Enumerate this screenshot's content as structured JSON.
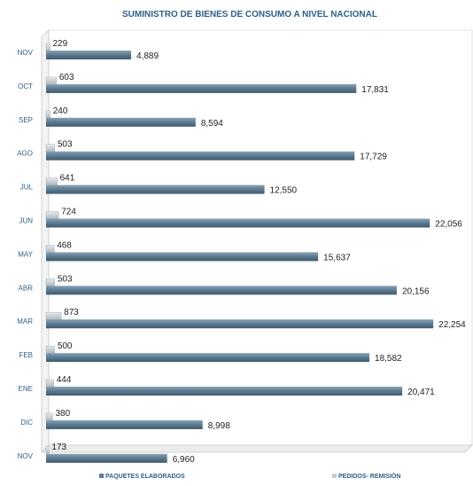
{
  "chart_data": {
    "type": "bar",
    "orientation": "horizontal",
    "title": "SUMINISTRO DE BIENES DE CONSUMO A NIVEL NACIONAL",
    "categories": [
      "NOV",
      "OCT",
      "SEP",
      "AGO",
      "JUL",
      "JUN",
      "MAY",
      "ABR",
      "MAR",
      "FEB",
      "ENE",
      "DIC",
      "NOV"
    ],
    "series": [
      {
        "name": "PEDIDOS- REMISIÓN",
        "values": [
          229,
          603,
          240,
          503,
          641,
          724,
          468,
          503,
          873,
          500,
          444,
          380,
          173
        ]
      },
      {
        "name": "PAQUETES ELABORADOS",
        "values": [
          4889,
          17831,
          8594,
          17729,
          12550,
          22056,
          15637,
          20156,
          22254,
          18582,
          20471,
          8998,
          6960
        ]
      }
    ],
    "value_labels": {
      "PEDIDOS- REMISIÓN": [
        "229",
        "603",
        "240",
        "503",
        "641",
        "724",
        "468",
        "503",
        "873",
        "500",
        "444",
        "380",
        "173"
      ],
      "PAQUETES ELABORADOS": [
        "4,889",
        "17,831",
        "8,594",
        "17,729",
        "12,550",
        "22,056",
        "15,637",
        "20,156",
        "22,254",
        "18,582",
        "20,471",
        "8,998",
        "6,960"
      ]
    },
    "xlim": [
      0,
      22500
    ],
    "grid": false,
    "legend_position": "bottom",
    "colors": {
      "paquetes": "#5e7d93",
      "pedidos": "#c4ccd2",
      "text": "#2f5f86"
    }
  }
}
